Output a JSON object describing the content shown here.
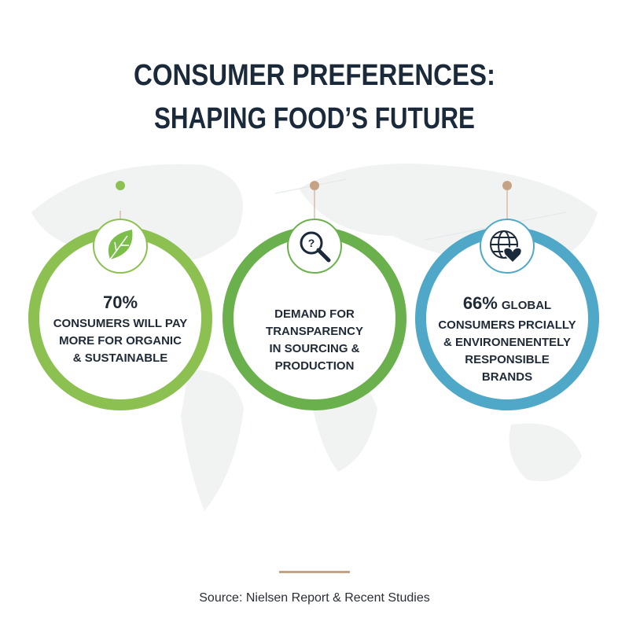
{
  "header": {
    "title": [
      "CONSUMER PREFERENCES:",
      "SHAPING FOOD’S FUTURE"
    ]
  },
  "cards": [
    {
      "headline": "70%",
      "lines": [
        "CONSUMERS WILL PAY",
        "MORE FOR ORGANIC",
        "& SUSTAINABLE"
      ]
    },
    {
      "lines": [
        "DEMAND FOR",
        "TRANSPARENCY",
        "IN SOURCING &",
        "PRODUCTION"
      ]
    },
    {
      "headline": "66%",
      "headline_rest": "GLOBAL",
      "lines": [
        "CONSUMERS PRCIALLY",
        "& ENVIRONENENTELY",
        "RESPONSIBLE",
        "BRANDS"
      ]
    }
  ],
  "source": "Source: Nielsen Report & Recent Studies"
}
